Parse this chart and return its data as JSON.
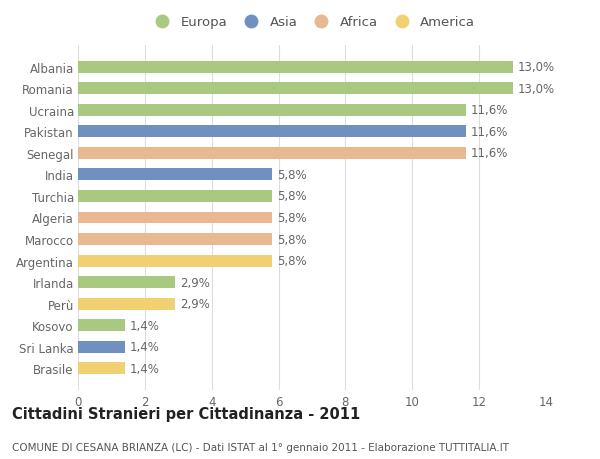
{
  "title": "Cittadini Stranieri per Cittadinanza - 2011",
  "subtitle": "COMUNE DI CESANA BRIANZA (LC) - Dati ISTAT al 1° gennaio 2011 - Elaborazione TUTTITALIA.IT",
  "categories": [
    "Albania",
    "Romania",
    "Ucraina",
    "Pakistan",
    "Senegal",
    "India",
    "Turchia",
    "Algeria",
    "Marocco",
    "Argentina",
    "Irlanda",
    "Perù",
    "Kosovo",
    "Sri Lanka",
    "Brasile"
  ],
  "values": [
    13.0,
    13.0,
    11.6,
    11.6,
    11.6,
    5.8,
    5.8,
    5.8,
    5.8,
    5.8,
    2.9,
    2.9,
    1.4,
    1.4,
    1.4
  ],
  "labels": [
    "13,0%",
    "13,0%",
    "11,6%",
    "11,6%",
    "11,6%",
    "5,8%",
    "5,8%",
    "5,8%",
    "5,8%",
    "5,8%",
    "2,9%",
    "2,9%",
    "1,4%",
    "1,4%",
    "1,4%"
  ],
  "continents": [
    "Europa",
    "Europa",
    "Europa",
    "Asia",
    "Africa",
    "Asia",
    "Europa",
    "Africa",
    "Africa",
    "America",
    "Europa",
    "America",
    "Europa",
    "Asia",
    "America"
  ],
  "continent_colors": {
    "Europa": "#a8c97f",
    "Asia": "#7090c0",
    "Africa": "#e8b890",
    "America": "#f0d070"
  },
  "legend_order": [
    "Europa",
    "Asia",
    "Africa",
    "America"
  ],
  "xlim": [
    0,
    14
  ],
  "xticks": [
    0,
    2,
    4,
    6,
    8,
    10,
    12,
    14
  ],
  "background_color": "#ffffff",
  "grid_color": "#dddddd",
  "bar_height": 0.55,
  "label_fontsize": 8.5,
  "title_fontsize": 10.5,
  "subtitle_fontsize": 7.5,
  "tick_fontsize": 8.5,
  "legend_fontsize": 9.5
}
